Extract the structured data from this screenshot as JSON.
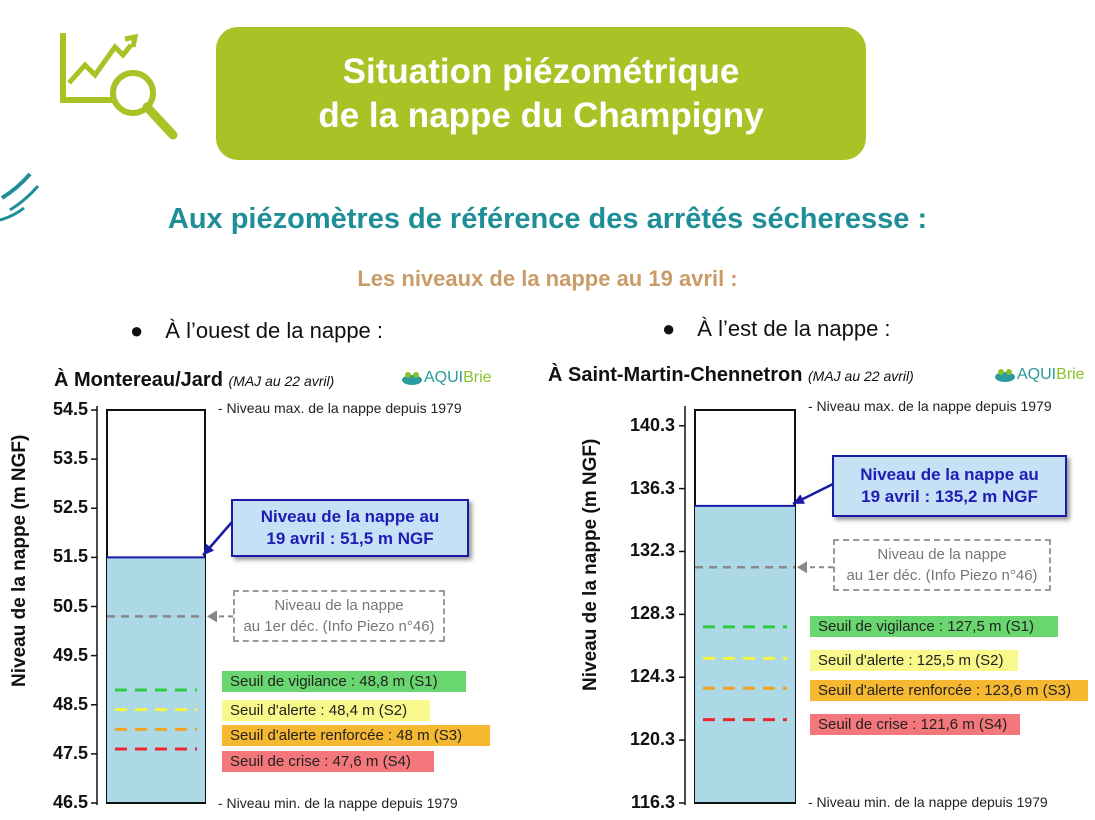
{
  "header": {
    "title_line1": "Situation piézométrique",
    "title_line2": "de la nappe du Champigny",
    "subtitle": "Aux piézomètres de référence des arrêtés sécheresse :",
    "date_line": "Les niveaux de la nappe au 19 avril :",
    "brand_a": "AQUI",
    "brand_b": "Brie",
    "icons": [
      "magnifier-chart-icon",
      "aquibrie-logo-icon"
    ]
  },
  "colors": {
    "title_bg": "#a7c326",
    "subtitle": "#1f8f97",
    "date_line": "#c99c67",
    "water": "#add8e6",
    "vigilance": "#2ecc40",
    "alerte": "#f5f53a",
    "renforcee": "#f2a21e",
    "crise": "#e8282e"
  },
  "chart_data": [
    {
      "type": "bar",
      "bullet": "À l’ouest de la nappe :",
      "station": "À Montereau/Jard",
      "maj": "(MAJ au 22 avril)",
      "ylabel": "Niveau de la nappe (m NGF)",
      "ylim": [
        46.5,
        54.5
      ],
      "ticks": [
        "54.5",
        "53.5",
        "52.5",
        "51.5",
        "50.5",
        "49.5",
        "48.5",
        "47.5",
        "46.5"
      ],
      "max_level": 54.5,
      "min_level": 46.5,
      "current_level": 51.5,
      "first_dec_level": 50.3,
      "note_max": "- Niveau max. de la nappe depuis 1979",
      "note_min": "- Niveau min. de la nappe depuis 1979",
      "callout_line1": "Niveau de la nappe au",
      "callout_line2": "19 avril : 51,5 m NGF",
      "dec_line1": "Niveau de la nappe",
      "dec_line2": "au 1er déc. (Info Piezo n°46)",
      "thresholds": [
        {
          "label": "Seuil de vigilance : 48,8 m (S1)",
          "value": 48.8
        },
        {
          "label": "Seuil d'alerte : 48,4 m (S2)",
          "value": 48.4
        },
        {
          "label": "Seuil d'alerte renforcée : 48 m (S3)",
          "value": 48.0
        },
        {
          "label": "Seuil de crise : 47,6 m (S4)",
          "value": 47.6
        }
      ]
    },
    {
      "type": "bar",
      "bullet": "À l’est de la nappe :",
      "station": "À Saint-Martin-Chennetron",
      "maj": "(MAJ au 22 avril)",
      "ylabel": "Niveau de la nappe (m NGF)",
      "ylim": [
        116.3,
        141.3
      ],
      "ticks": [
        "140.3",
        "136.3",
        "132.3",
        "128.3",
        "124.3",
        "120.3",
        "116.3"
      ],
      "max_level": 141.3,
      "min_level": 116.3,
      "current_level": 135.2,
      "first_dec_level": 131.3,
      "note_max": "- Niveau max. de la nappe depuis 1979",
      "note_min": "- Niveau min. de la nappe depuis 1979",
      "callout_line1": "Niveau de la nappe au",
      "callout_line2": "19 avril : 135,2 m NGF",
      "dec_line1": "Niveau de la nappe",
      "dec_line2": "au 1er déc. (Info Piezo n°46)",
      "thresholds": [
        {
          "label": "Seuil de vigilance : 127,5 m (S1)",
          "value": 127.5
        },
        {
          "label": "Seuil d'alerte : 125,5 m (S2)",
          "value": 125.5
        },
        {
          "label": "Seuil d'alerte renforcée : 123,6 m (S3)",
          "value": 123.6
        },
        {
          "label": "Seuil de crise : 121,6 m (S4)",
          "value": 121.6
        }
      ]
    }
  ]
}
